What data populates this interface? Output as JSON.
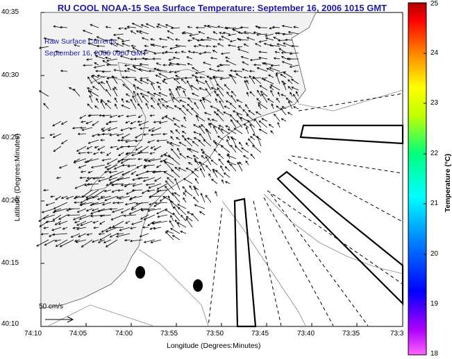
{
  "title": "RU COOL  NOAA-15  Sea Surface Temperature:  September 16, 2006 1015 GMT",
  "subtitle_line1": "Raw Surface Currents",
  "subtitle_line2": "September 16, 2006 0900 GMT",
  "x_axis": {
    "label": "Longitude (Degrees:Minutes)",
    "ticks": [
      "74:10",
      "74:05",
      "74:00",
      "73:55",
      "73:50",
      "73:45",
      "73:40",
      "73:35",
      "73:3"
    ]
  },
  "y_axis": {
    "label": "Latitude (Degrees:Minutes)",
    "ticks": [
      "40:35",
      "40:30",
      "40:25",
      "40:20",
      "40:15",
      "40:10"
    ]
  },
  "colorbar": {
    "label": "Temperature (°C)",
    "ticks": [
      "25",
      "24",
      "23",
      "22",
      "21",
      "20",
      "19",
      "18"
    ]
  },
  "scale_arrow_label": "50 cm/s",
  "colors": {
    "title": "#1a1aa6",
    "land": "#f2f2f2",
    "ocean": "#ffffff",
    "coast": "#555555"
  }
}
